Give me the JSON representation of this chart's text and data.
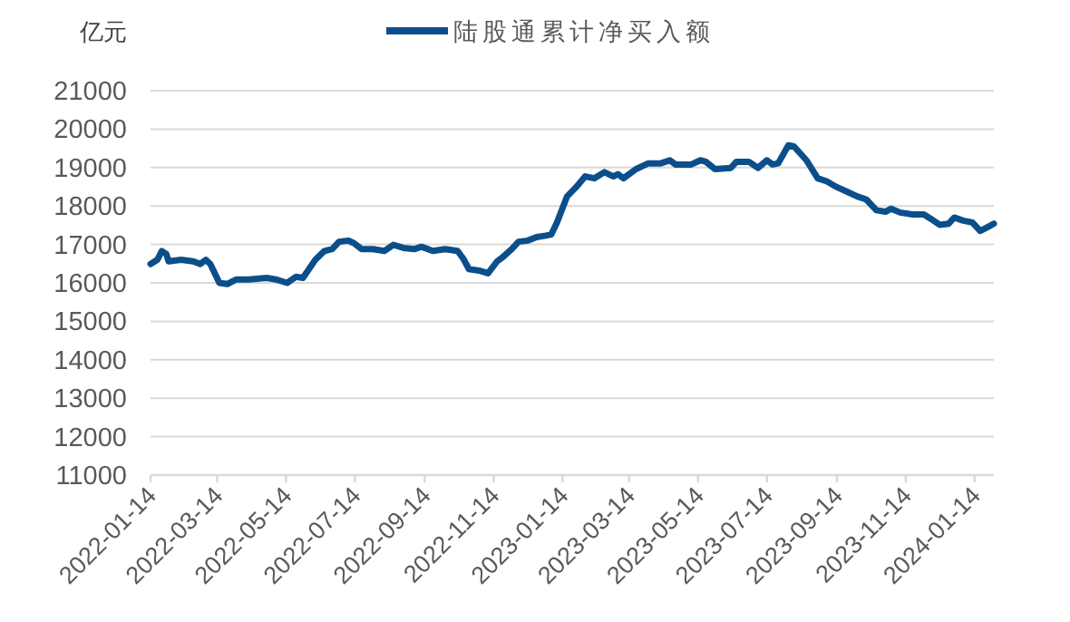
{
  "chart_data": {
    "type": "line",
    "ylabel": "亿元",
    "legend": "top",
    "grid": "y",
    "line_style": "solid",
    "marker": "none",
    "xlim": [
      "2022-01-14",
      "2024-01-31"
    ],
    "xticks": [
      "2022-01-14",
      "2022-03-14",
      "2022-05-14",
      "2022-07-14",
      "2022-09-14",
      "2022-11-14",
      "2023-01-14",
      "2023-03-14",
      "2023-05-14",
      "2023-07-14",
      "2023-09-14",
      "2023-11-14",
      "2024-01-14"
    ],
    "ylim": [
      11000,
      21000
    ],
    "yticks": [
      11000,
      12000,
      13000,
      14000,
      15000,
      16000,
      17000,
      18000,
      19000,
      20000,
      21000
    ],
    "x": [
      "2022-01-14",
      "2022-01-20",
      "2022-01-24",
      "2022-01-28",
      "2022-01-30",
      "2022-02-10",
      "2022-02-21",
      "2022-02-27",
      "2022-03-04",
      "2022-03-08",
      "2022-03-16",
      "2022-03-23",
      "2022-03-31",
      "2022-04-11",
      "2022-04-27",
      "2022-05-05",
      "2022-05-15",
      "2022-05-23",
      "2022-05-29",
      "2022-06-09",
      "2022-06-17",
      "2022-06-24",
      "2022-06-30",
      "2022-07-08",
      "2022-07-13",
      "2022-07-20",
      "2022-07-30",
      "2022-08-09",
      "2022-08-17",
      "2022-08-26",
      "2022-09-05",
      "2022-09-11",
      "2022-09-21",
      "2022-10-02",
      "2022-10-13",
      "2022-10-18",
      "2022-10-23",
      "2022-11-01",
      "2022-11-09",
      "2022-11-17",
      "2022-11-22",
      "2022-11-30",
      "2022-12-06",
      "2022-12-14",
      "2022-12-22",
      "2022-12-30",
      "2023-01-04",
      "2023-01-09",
      "2023-01-18",
      "2023-01-26",
      "2023-02-03",
      "2023-02-11",
      "2023-02-20",
      "2023-02-28",
      "2023-03-04",
      "2023-03-09",
      "2023-03-20",
      "2023-03-31",
      "2023-04-11",
      "2023-04-19",
      "2023-04-24",
      "2023-05-08",
      "2023-05-16",
      "2023-05-21",
      "2023-05-29",
      "2023-06-12",
      "2023-06-17",
      "2023-06-28",
      "2023-07-06",
      "2023-07-14",
      "2023-07-19",
      "2023-07-24",
      "2023-08-02",
      "2023-08-07",
      "2023-08-18",
      "2023-08-28",
      "2023-09-05",
      "2023-09-14",
      "2023-09-24",
      "2023-10-02",
      "2023-10-10",
      "2023-10-19",
      "2023-10-27",
      "2023-11-01",
      "2023-11-09",
      "2023-11-20",
      "2023-11-30",
      "2023-12-06",
      "2023-12-14",
      "2023-12-22",
      "2023-12-27",
      "2024-01-04",
      "2024-01-12",
      "2024-01-19",
      "2024-01-26",
      "2024-01-31"
    ],
    "series": [
      {
        "name": "陆股通累计净买入额",
        "color": "#0b4f8a",
        "values": [
          16490,
          16600,
          16830,
          16750,
          16560,
          16600,
          16560,
          16490,
          16600,
          16490,
          16000,
          15970,
          16090,
          16090,
          16130,
          16090,
          16000,
          16160,
          16130,
          16600,
          16830,
          16880,
          17070,
          17100,
          17040,
          16880,
          16880,
          16830,
          16990,
          16910,
          16880,
          16940,
          16830,
          16880,
          16830,
          16630,
          16360,
          16320,
          16250,
          16560,
          16670,
          16880,
          17070,
          17100,
          17190,
          17230,
          17260,
          17570,
          18250,
          18490,
          18770,
          18720,
          18880,
          18770,
          18830,
          18720,
          18960,
          19110,
          19110,
          19190,
          19080,
          19080,
          19190,
          19150,
          18960,
          18990,
          19150,
          19150,
          18990,
          19190,
          19080,
          19110,
          19580,
          19550,
          19190,
          18720,
          18640,
          18490,
          18360,
          18250,
          18170,
          17890,
          17850,
          17930,
          17830,
          17780,
          17780,
          17670,
          17510,
          17540,
          17700,
          17620,
          17570,
          17350,
          17460,
          17540
        ]
      }
    ]
  }
}
